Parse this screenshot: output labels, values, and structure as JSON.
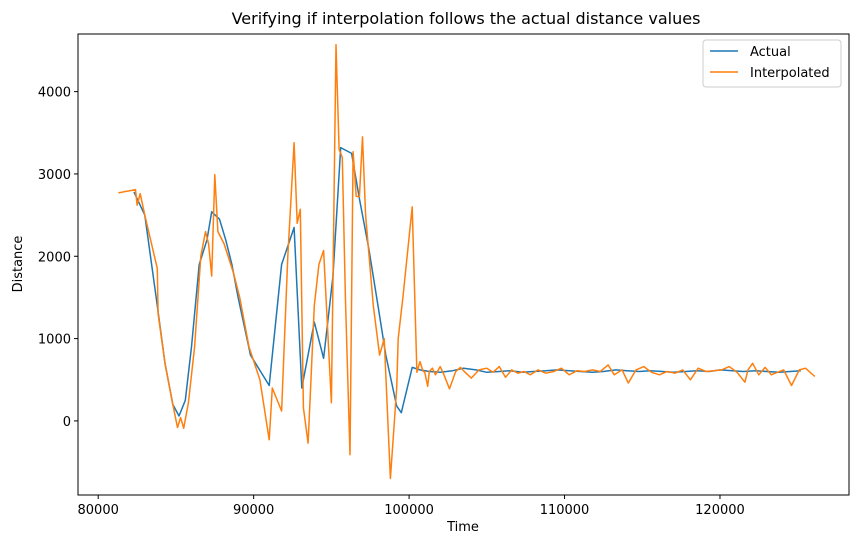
{
  "chart_data": {
    "type": "line",
    "title": "Verifying if interpolation follows the actual distance values",
    "xlabel": "Time",
    "ylabel": "Distance",
    "xlim": [
      78700,
      128300
    ],
    "ylim": [
      -900,
      4700
    ],
    "xticks": [
      80000,
      90000,
      100000,
      110000,
      120000
    ],
    "yticks": [
      0,
      1000,
      2000,
      3000,
      4000
    ],
    "grid": false,
    "legend": "top-right",
    "series": [
      {
        "name": "Actual",
        "color": "#1f77b4",
        "x": [
          82300,
          83000,
          83800,
          84300,
          84800,
          85200,
          85600,
          86000,
          86500,
          87000,
          87300,
          87800,
          88200,
          88600,
          89000,
          89800,
          91000,
          91800,
          92600,
          93100,
          93400,
          93900,
          94500,
          95100,
          95600,
          96300,
          96800,
          97400,
          98000,
          98500,
          99200,
          99500,
          100200,
          100700,
          101300,
          102000,
          102800,
          103500,
          104300,
          105000,
          105800,
          106500,
          107300,
          108000,
          108800,
          109500,
          110300,
          111000,
          111800,
          112500,
          113300,
          114000,
          114800,
          115500,
          116300,
          117000,
          117800,
          118500,
          119300,
          120000,
          120800,
          121500,
          122300,
          123000,
          123800,
          124500,
          125200
        ],
        "y": [
          2780,
          2500,
          1400,
          700,
          200,
          60,
          250,
          900,
          1900,
          2200,
          2540,
          2450,
          2200,
          1900,
          1500,
          800,
          430,
          1900,
          2350,
          400,
          700,
          1200,
          760,
          1750,
          3320,
          3250,
          2700,
          2100,
          1400,
          800,
          180,
          100,
          650,
          620,
          600,
          590,
          610,
          640,
          620,
          590,
          600,
          610,
          590,
          600,
          610,
          620,
          610,
          600,
          590,
          600,
          620,
          610,
          600,
          610,
          600,
          590,
          600,
          610,
          600,
          620,
          610,
          600,
          610,
          600,
          590,
          600,
          610
        ]
      },
      {
        "name": "Interpolated",
        "color": "#ff7f0e",
        "x": [
          81300,
          82400,
          82500,
          82700,
          83000,
          83800,
          83850,
          84300,
          84800,
          85100,
          85300,
          85500,
          85800,
          86200,
          86600,
          86900,
          87100,
          87300,
          87500,
          87700,
          88100,
          88700,
          89100,
          89700,
          90400,
          91000,
          91200,
          91800,
          92200,
          92600,
          92800,
          93000,
          93200,
          93500,
          93900,
          94200,
          94500,
          95000,
          95300,
          95500,
          95700,
          95900,
          96200,
          96400,
          96600,
          96800,
          97000,
          97200,
          97700,
          98100,
          98400,
          98800,
          99200,
          99300,
          99600,
          100200,
          100500,
          100700,
          100900,
          101000,
          101200,
          101300,
          101500,
          101700,
          102000,
          102200,
          102600,
          103000,
          103300,
          103600,
          104000,
          104500,
          105000,
          105400,
          105800,
          106200,
          106600,
          107000,
          107400,
          107800,
          108300,
          108800,
          109300,
          109800,
          110300,
          110800,
          111300,
          111800,
          112300,
          112800,
          113200,
          113700,
          114100,
          114600,
          115100,
          115600,
          116100,
          116600,
          117100,
          117600,
          118100,
          118600,
          119100,
          119600,
          120100,
          120600,
          121100,
          121600,
          121800,
          122100,
          122500,
          122900,
          123300,
          123700,
          124100,
          124600,
          125100,
          125500,
          126100
        ],
        "y": [
          2770,
          2810,
          2620,
          2760,
          2500,
          1850,
          1300,
          700,
          200,
          -80,
          40,
          -90,
          220,
          900,
          2000,
          2300,
          2150,
          1760,
          2990,
          2300,
          2150,
          1800,
          1500,
          900,
          500,
          -230,
          400,
          120,
          2000,
          3380,
          2400,
          2570,
          160,
          -270,
          1400,
          1900,
          2070,
          220,
          4570,
          3300,
          3200,
          1500,
          -410,
          3270,
          2730,
          2720,
          3450,
          2500,
          1400,
          800,
          1000,
          -700,
          400,
          1000,
          1500,
          2600,
          590,
          720,
          600,
          600,
          420,
          600,
          640,
          560,
          660,
          580,
          390,
          600,
          650,
          590,
          520,
          620,
          640,
          590,
          660,
          530,
          620,
          580,
          600,
          560,
          620,
          580,
          600,
          640,
          560,
          610,
          600,
          620,
          600,
          680,
          560,
          620,
          460,
          620,
          660,
          590,
          560,
          600,
          580,
          620,
          500,
          640,
          600,
          610,
          620,
          660,
          590,
          470,
          620,
          700,
          560,
          650,
          560,
          590,
          620,
          430,
          620,
          640,
          540
        ]
      }
    ]
  }
}
